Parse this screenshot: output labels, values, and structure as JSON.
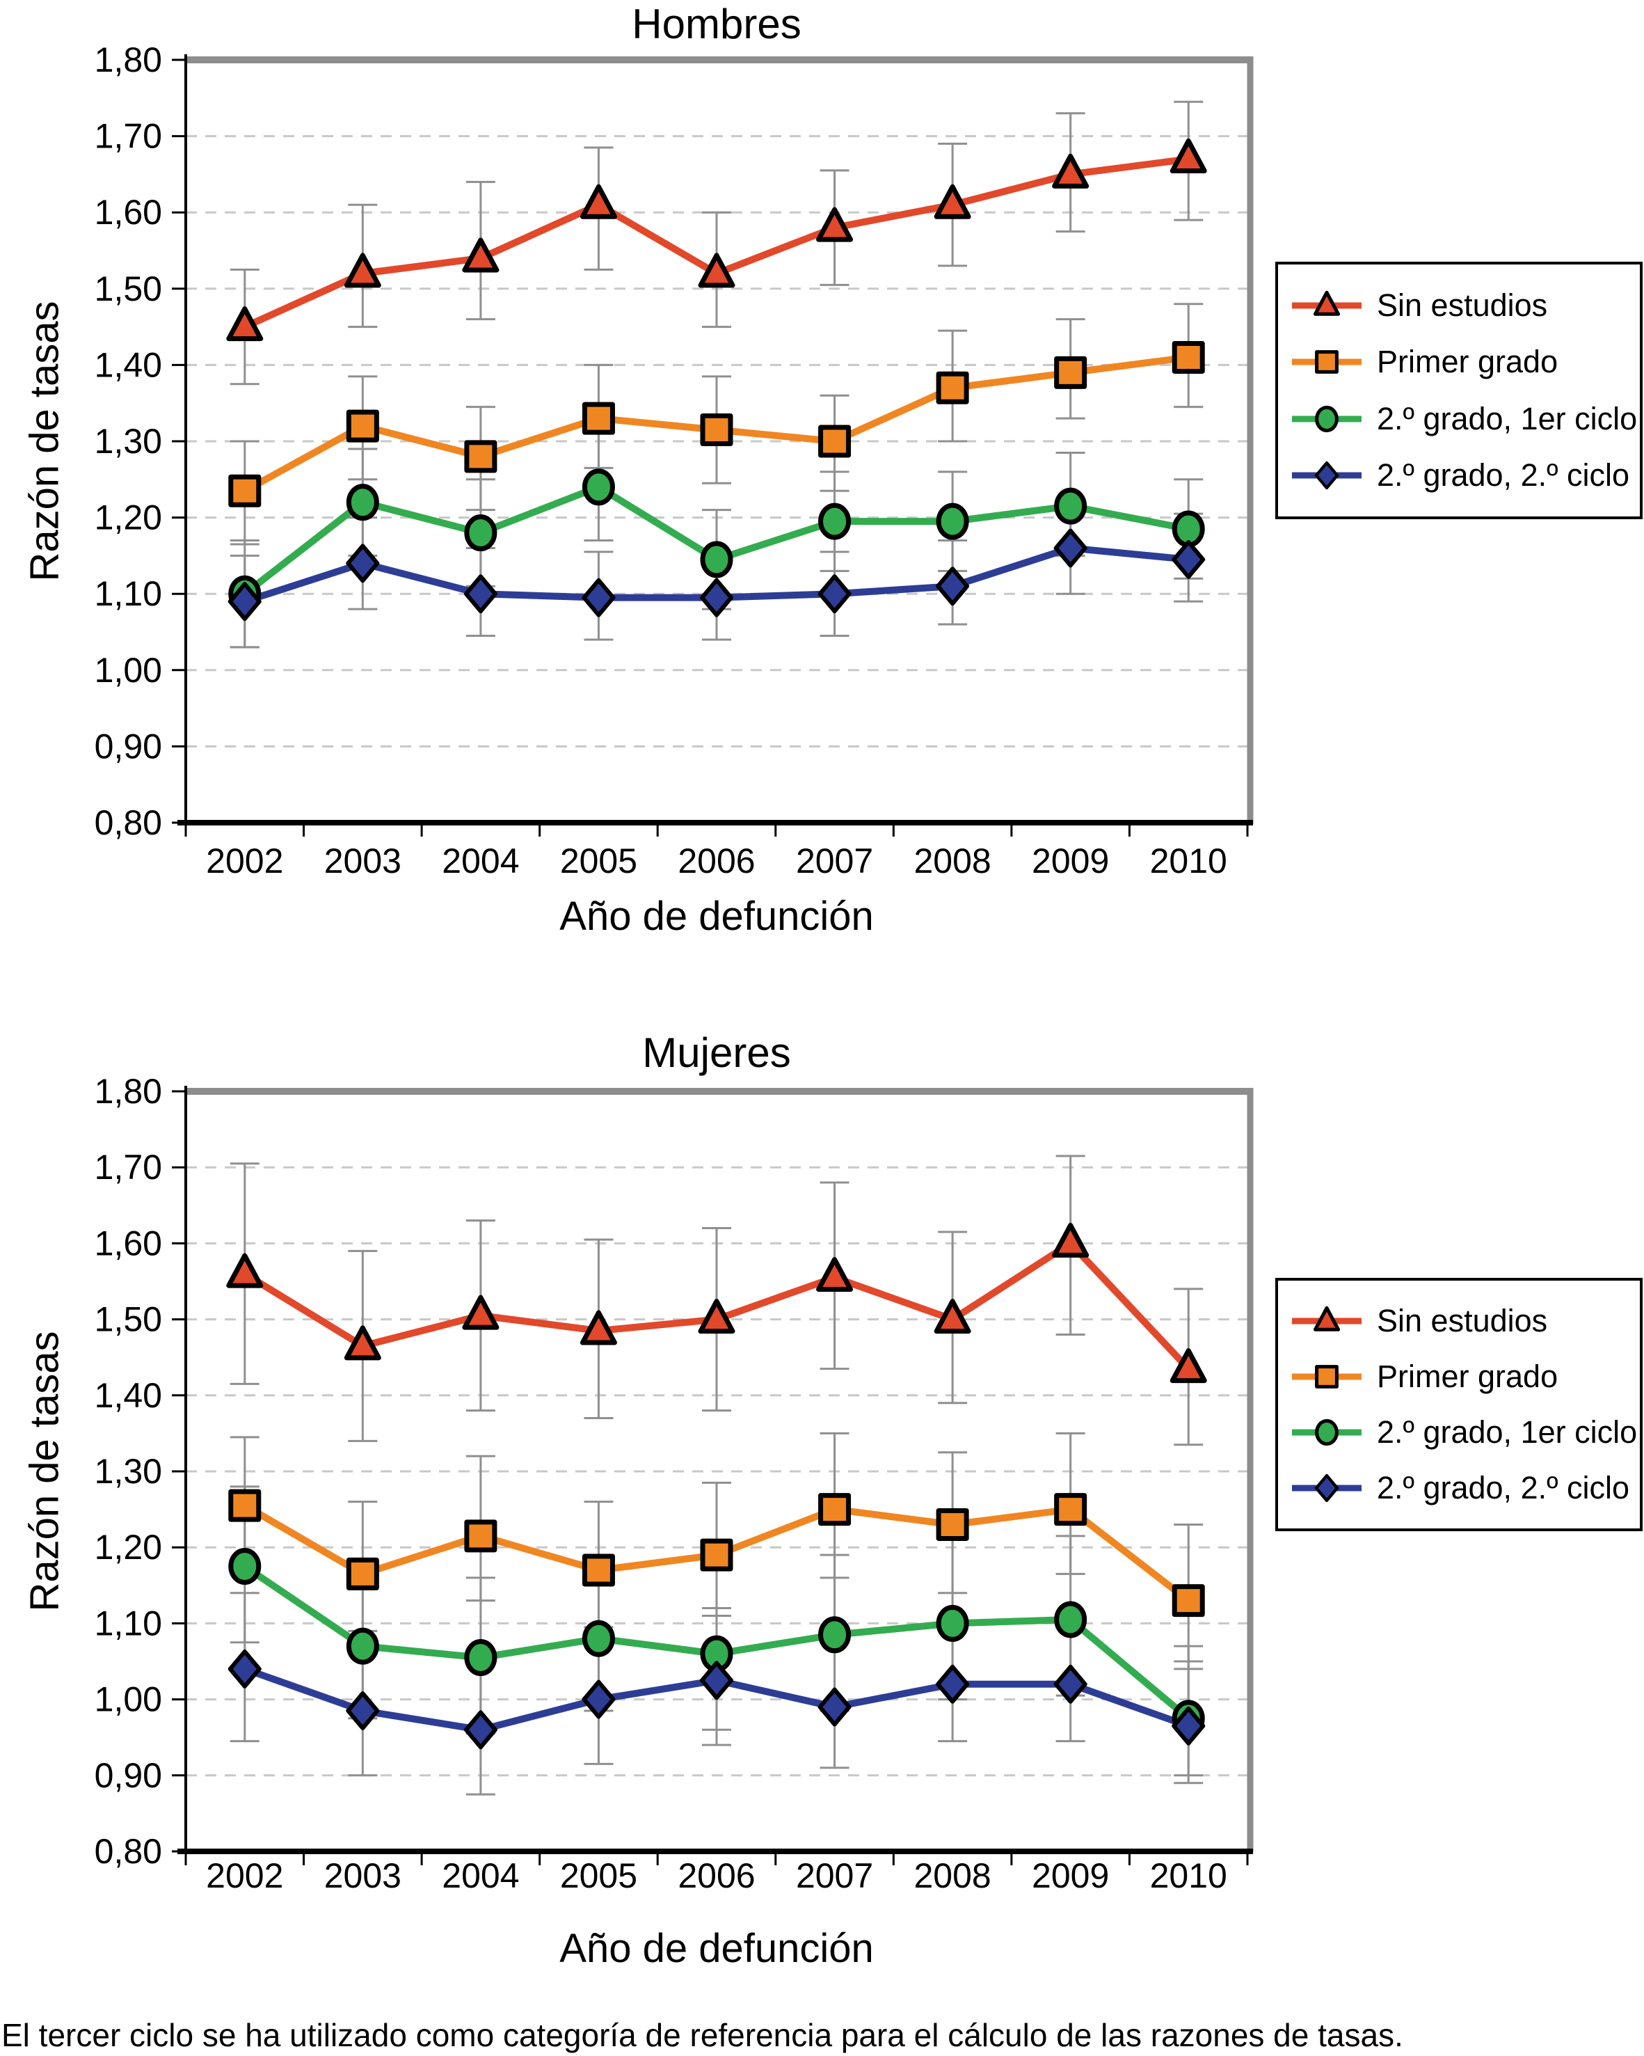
{
  "page": {
    "footnote": "El tercer ciclo se ha utilizado como categoría de referencia para el cálculo de las razones de tasas."
  },
  "colors": {
    "sin_estudios": "#E2482A",
    "primer_grado": "#F08621",
    "grado2_ciclo1": "#33AC50",
    "grado2_ciclo2": "#2D3D96",
    "error_bar": "#8F8F8F",
    "gridline": "#C8C8C8",
    "border_gray": "#8D8D8D",
    "axis_black": "#000000"
  },
  "legend": {
    "entries": [
      "Sin estudios",
      "Primer grado",
      "2.º grado, 1er ciclo",
      "2.º grado, 2.º ciclo"
    ]
  },
  "chart_data": [
    {
      "type": "line",
      "title": "Hombres",
      "xlabel": "Año de defunción",
      "ylabel": "Razón de tasas",
      "ylim": [
        0.8,
        1.8
      ],
      "grid": "horizontal-dashed",
      "legend_position": "right",
      "categories": [
        "2002",
        "2003",
        "2004",
        "2005",
        "2006",
        "2007",
        "2008",
        "2009",
        "2010"
      ],
      "yticks": [
        {
          "value": 1.8,
          "label": "1,80"
        },
        {
          "value": 1.7,
          "label": "1,70"
        },
        {
          "value": 1.6,
          "label": "1,60"
        },
        {
          "value": 1.5,
          "label": "1,50"
        },
        {
          "value": 1.4,
          "label": "1,40"
        },
        {
          "value": 1.3,
          "label": "1,30"
        },
        {
          "value": 1.2,
          "label": "1,20"
        },
        {
          "value": 1.1,
          "label": "1,10"
        },
        {
          "value": 1.0,
          "label": "1,00"
        },
        {
          "value": 0.9,
          "label": "0,90"
        },
        {
          "value": 0.8,
          "label": "0,80"
        }
      ],
      "series": [
        {
          "name": "Sin estudios",
          "key": "sin_estudios",
          "marker": "triangle",
          "color": "#E2482A",
          "values": [
            1.45,
            1.52,
            1.54,
            1.61,
            1.52,
            1.58,
            1.61,
            1.65,
            1.67
          ],
          "err_lo": [
            1.375,
            1.45,
            1.46,
            1.525,
            1.45,
            1.505,
            1.53,
            1.575,
            1.59
          ],
          "err_hi": [
            1.525,
            1.61,
            1.64,
            1.685,
            1.6,
            1.655,
            1.69,
            1.73,
            1.745
          ]
        },
        {
          "name": "Primer grado",
          "key": "primer_grado",
          "marker": "square",
          "color": "#F08621",
          "values": [
            1.235,
            1.32,
            1.28,
            1.33,
            1.315,
            1.3,
            1.37,
            1.39,
            1.41
          ],
          "err_lo": [
            1.165,
            1.25,
            1.21,
            1.265,
            1.245,
            1.235,
            1.3,
            1.33,
            1.345
          ],
          "err_hi": [
            1.3,
            1.385,
            1.345,
            1.4,
            1.385,
            1.36,
            1.445,
            1.46,
            1.48
          ]
        },
        {
          "name": "2.º grado, 1er ciclo",
          "key": "grado2_ciclo1",
          "marker": "circle",
          "color": "#33AC50",
          "values": [
            1.1,
            1.22,
            1.18,
            1.24,
            1.145,
            1.195,
            1.195,
            1.215,
            1.185
          ],
          "err_lo": [
            1.03,
            1.15,
            1.11,
            1.17,
            1.08,
            1.13,
            1.13,
            1.15,
            1.12
          ],
          "err_hi": [
            1.17,
            1.29,
            1.25,
            1.31,
            1.21,
            1.26,
            1.26,
            1.285,
            1.25
          ]
        },
        {
          "name": "2.º grado, 2.º ciclo",
          "key": "grado2_ciclo2",
          "marker": "diamond",
          "color": "#2D3D96",
          "values": [
            1.09,
            1.14,
            1.1,
            1.095,
            1.095,
            1.1,
            1.11,
            1.16,
            1.145
          ],
          "err_lo": [
            1.03,
            1.08,
            1.045,
            1.04,
            1.04,
            1.045,
            1.06,
            1.1,
            1.09
          ],
          "err_hi": [
            1.15,
            1.2,
            1.16,
            1.155,
            1.155,
            1.155,
            1.17,
            1.22,
            1.205
          ]
        }
      ]
    },
    {
      "type": "line",
      "title": "Mujeres",
      "xlabel": "Año de defunción",
      "ylabel": "Razón de tasas",
      "ylim": [
        0.8,
        1.8
      ],
      "grid": "horizontal-dashed",
      "legend_position": "right",
      "categories": [
        "2002",
        "2003",
        "2004",
        "2005",
        "2006",
        "2007",
        "2008",
        "2009",
        "2010"
      ],
      "yticks": [
        {
          "value": 1.8,
          "label": "1,80"
        },
        {
          "value": 1.7,
          "label": "1,70"
        },
        {
          "value": 1.6,
          "label": "1,60"
        },
        {
          "value": 1.5,
          "label": "1,50"
        },
        {
          "value": 1.4,
          "label": "1,40"
        },
        {
          "value": 1.3,
          "label": "1,30"
        },
        {
          "value": 1.2,
          "label": "1,20"
        },
        {
          "value": 1.1,
          "label": "1,10"
        },
        {
          "value": 1.0,
          "label": "1,00"
        },
        {
          "value": 0.9,
          "label": "0,90"
        },
        {
          "value": 0.8,
          "label": "0,80"
        }
      ],
      "series": [
        {
          "name": "Sin estudios",
          "key": "sin_estudios",
          "marker": "triangle",
          "color": "#E2482A",
          "values": [
            1.56,
            1.465,
            1.505,
            1.485,
            1.5,
            1.555,
            1.5,
            1.6,
            1.435
          ],
          "err_lo": [
            1.415,
            1.34,
            1.38,
            1.37,
            1.38,
            1.435,
            1.39,
            1.48,
            1.335
          ],
          "err_hi": [
            1.705,
            1.59,
            1.63,
            1.605,
            1.62,
            1.68,
            1.615,
            1.715,
            1.54
          ]
        },
        {
          "name": "Primer grado",
          "key": "primer_grado",
          "marker": "square",
          "color": "#F08621",
          "values": [
            1.255,
            1.165,
            1.215,
            1.17,
            1.19,
            1.25,
            1.23,
            1.25,
            1.13
          ],
          "err_lo": [
            1.165,
            1.075,
            1.13,
            1.09,
            1.11,
            1.16,
            1.14,
            1.165,
            1.04
          ],
          "err_hi": [
            1.345,
            1.26,
            1.32,
            1.26,
            1.285,
            1.35,
            1.325,
            1.35,
            1.23
          ]
        },
        {
          "name": "2.º grado, 1er ciclo",
          "key": "grado2_ciclo1",
          "marker": "circle",
          "color": "#33AC50",
          "values": [
            1.175,
            1.07,
            1.055,
            1.08,
            1.06,
            1.085,
            1.1,
            1.105,
            0.975
          ],
          "err_lo": [
            1.075,
            0.975,
            0.955,
            0.985,
            0.96,
            0.985,
            1.0,
            1.005,
            0.89
          ],
          "err_hi": [
            1.28,
            1.175,
            1.16,
            1.185,
            1.17,
            1.19,
            1.21,
            1.215,
            1.07
          ]
        },
        {
          "name": "2.º grado, 2.º ciclo",
          "key": "grado2_ciclo2",
          "marker": "diamond",
          "color": "#2D3D96",
          "values": [
            1.04,
            0.985,
            0.96,
            1.0,
            1.025,
            0.99,
            1.02,
            1.02,
            0.965
          ],
          "err_lo": [
            0.945,
            0.9,
            0.875,
            0.915,
            0.94,
            0.91,
            0.945,
            0.945,
            0.9
          ],
          "err_hi": [
            1.14,
            1.09,
            1.06,
            1.095,
            1.12,
            1.08,
            1.105,
            1.1,
            1.05
          ]
        }
      ]
    }
  ]
}
